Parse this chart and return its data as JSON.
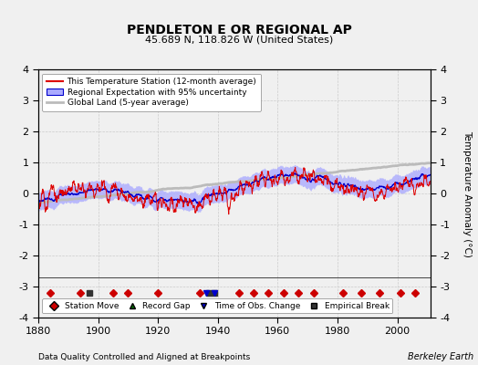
{
  "title": "PENDLETON E OR REGIONAL AP",
  "subtitle": "45.689 N, 118.826 W (United States)",
  "ylabel": "Temperature Anomaly (°C)",
  "xlabel_left": "Data Quality Controlled and Aligned at Breakpoints",
  "xlabel_right": "Berkeley Earth",
  "ylim": [
    -4,
    4
  ],
  "xlim": [
    1880,
    2011
  ],
  "xticks": [
    1880,
    1900,
    1920,
    1940,
    1960,
    1980,
    2000
  ],
  "yticks": [
    -4,
    -3,
    -2,
    -1,
    0,
    1,
    2,
    3,
    4
  ],
  "legend": {
    "station_label": "This Temperature Station (12-month average)",
    "regional_label": "Regional Expectation with 95% uncertainty",
    "global_label": "Global Land (5-year average)"
  },
  "marker_legend": {
    "station_move": {
      "label": "Station Move",
      "color": "#cc0000",
      "marker": "D"
    },
    "record_gap": {
      "label": "Record Gap",
      "color": "#006600",
      "marker": "^"
    },
    "time_obs": {
      "label": "Time of Obs. Change",
      "color": "#0000cc",
      "marker": "v"
    },
    "empirical_break": {
      "label": "Empirical Break",
      "color": "#333333",
      "marker": "s"
    }
  },
  "colors": {
    "station": "#dd0000",
    "regional_band": "#aaaaff",
    "regional_line": "#0000cc",
    "global": "#bbbbbb",
    "background": "#f0f0f0",
    "grid": "#cccccc"
  },
  "station_moves": [
    1884,
    1894,
    1905,
    1910,
    1920,
    1934,
    1947,
    1952,
    1957,
    1962,
    1967,
    1972,
    1982,
    1988,
    1994,
    2001,
    2006
  ],
  "empirical_breaks": [
    1897,
    1937,
    1939
  ],
  "time_obs_changes": [
    1936,
    1939
  ],
  "record_gaps": []
}
